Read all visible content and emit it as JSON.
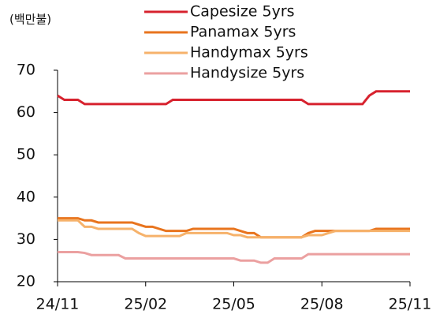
{
  "chart_data": {
    "type": "line",
    "y_label": "(백만불)",
    "categories": [
      "24/11",
      null,
      null,
      null,
      null,
      null,
      null,
      null,
      null,
      null,
      null,
      null,
      null,
      "25/02",
      null,
      null,
      null,
      null,
      null,
      null,
      null,
      null,
      null,
      null,
      null,
      null,
      "25/05",
      null,
      null,
      null,
      null,
      null,
      null,
      null,
      null,
      null,
      null,
      null,
      null,
      "25/08",
      null,
      null,
      null,
      null,
      null,
      null,
      null,
      null,
      null,
      null,
      null,
      null,
      "25/11"
    ],
    "series": [
      {
        "name": "Capesize 5yrs",
        "color": "#d7222e",
        "values": [
          64,
          63,
          63,
          63,
          62,
          62,
          62,
          62,
          62,
          62,
          62,
          62,
          62,
          62,
          62,
          62,
          62,
          63,
          63,
          63,
          63,
          63,
          63,
          63,
          63,
          63,
          63,
          63,
          63,
          63,
          63,
          63,
          63,
          63,
          63,
          63,
          63,
          62,
          62,
          62,
          62,
          62,
          62,
          62,
          62,
          62,
          64,
          65,
          65,
          65,
          65,
          65,
          65
        ]
      },
      {
        "name": "Panamax 5yrs",
        "color": "#e8741e",
        "values": [
          35,
          35,
          35,
          35,
          34.5,
          34.5,
          34,
          34,
          34,
          34,
          34,
          34,
          33.5,
          33,
          33,
          32.5,
          32,
          32,
          32,
          32,
          32.5,
          32.5,
          32.5,
          32.5,
          32.5,
          32.5,
          32.5,
          32,
          31.5,
          31.5,
          30.5,
          30.5,
          30.5,
          30.5,
          30.5,
          30.5,
          30.5,
          31.5,
          32,
          32,
          32,
          32,
          32,
          32,
          32,
          32,
          32,
          32.5,
          32.5,
          32.5,
          32.5,
          32.5,
          32.5
        ]
      },
      {
        "name": "Handymax 5yrs",
        "color": "#f6b26b",
        "values": [
          34.5,
          34.5,
          34.5,
          34.5,
          33,
          33,
          32.5,
          32.5,
          32.5,
          32.5,
          32.5,
          32.5,
          31.5,
          30.8,
          30.8,
          30.8,
          30.8,
          30.8,
          30.8,
          31.5,
          31.5,
          31.5,
          31.5,
          31.5,
          31.5,
          31.5,
          31,
          31,
          30.5,
          30.5,
          30.5,
          30.5,
          30.5,
          30.5,
          30.5,
          30.5,
          30.5,
          31,
          31,
          31,
          31.5,
          32,
          32,
          32,
          32,
          32,
          32,
          32,
          32,
          32,
          32,
          32,
          32
        ]
      },
      {
        "name": "Handysize 5yrs",
        "color": "#eba0a0",
        "values": [
          27,
          27,
          27,
          27,
          26.8,
          26.3,
          26.3,
          26.3,
          26.3,
          26.3,
          25.5,
          25.5,
          25.5,
          25.5,
          25.5,
          25.5,
          25.5,
          25.5,
          25.5,
          25.5,
          25.5,
          25.5,
          25.5,
          25.5,
          25.5,
          25.5,
          25.5,
          25,
          25,
          25,
          24.5,
          24.5,
          25.5,
          25.5,
          25.5,
          25.5,
          25.5,
          26.5,
          26.5,
          26.5,
          26.5,
          26.5,
          26.5,
          26.5,
          26.5,
          26.5,
          26.5,
          26.5,
          26.5,
          26.5,
          26.5,
          26.5,
          26.5
        ]
      }
    ],
    "ylim": [
      20,
      70
    ],
    "yticks": [
      20,
      30,
      40,
      50,
      60,
      70
    ]
  }
}
